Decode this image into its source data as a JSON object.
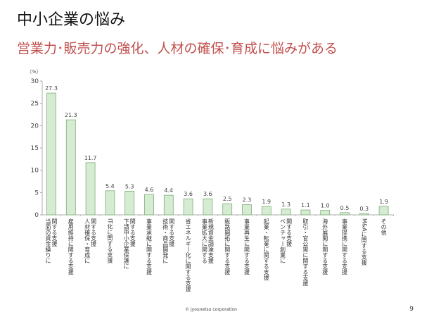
{
  "slide": {
    "title": "中小企業の悩み",
    "subtitle": "営業力･販売力の強化、人材の確保･育成に悩みがある",
    "footer": "© jyounetsu corporation",
    "page_number": "9"
  },
  "colors": {
    "bar_fill": "#d6ecd2",
    "bar_stroke": "#7fae7a",
    "subtitle": "#c0504d"
  },
  "chart_data": {
    "type": "bar",
    "ylabel": "（%）",
    "ylim": [
      0,
      30
    ],
    "yticks": [
      0,
      5,
      10,
      15,
      20,
      25,
      30
    ],
    "grid": false,
    "categories": [
      [
        "当面の資金繰りに",
        "関する支援"
      ],
      [
        "雇用維持に関する支援"
      ],
      [
        "人材確保・育成に",
        "関する支援"
      ],
      [
        "IT化に関する支援"
      ],
      [
        "下請中小企業保護に",
        "関する支援"
      ],
      [
        "事業承継に関する支援"
      ],
      [
        "技術・商品開発に",
        "関する支援"
      ],
      [
        "省エネルギー化に関する支援"
      ],
      [
        "事業拡大に関する",
        "新規資金調達支援"
      ],
      [
        "販路開拓に関する支援"
      ],
      [
        "事業再生に関する支援"
      ],
      [
        "起業・転業に関する支援"
      ],
      [
        "ベンチャー創業に",
        "関する支援"
      ],
      [
        "取引・官公需に関する支援"
      ],
      [
        "海外展開に関する支援"
      ],
      [
        "事業提携に関する支援"
      ],
      [
        "M&Aに関する支援"
      ],
      [
        "その他"
      ]
    ],
    "values": [
      27.3,
      21.3,
      11.7,
      5.4,
      5.3,
      4.6,
      4.4,
      3.6,
      3.6,
      2.5,
      2.3,
      1.9,
      1.3,
      1.1,
      1.0,
      0.5,
      0.3,
      1.9
    ],
    "value_labels": [
      "27.3",
      "21.3",
      "11.7",
      "5.4",
      "5.3",
      "4.6",
      "4.4",
      "3.6",
      "3.6",
      "2.5",
      "2.3",
      "1.9",
      "1.3",
      "1.1",
      "1.0",
      "0.5",
      "0.3",
      "1.9"
    ]
  }
}
